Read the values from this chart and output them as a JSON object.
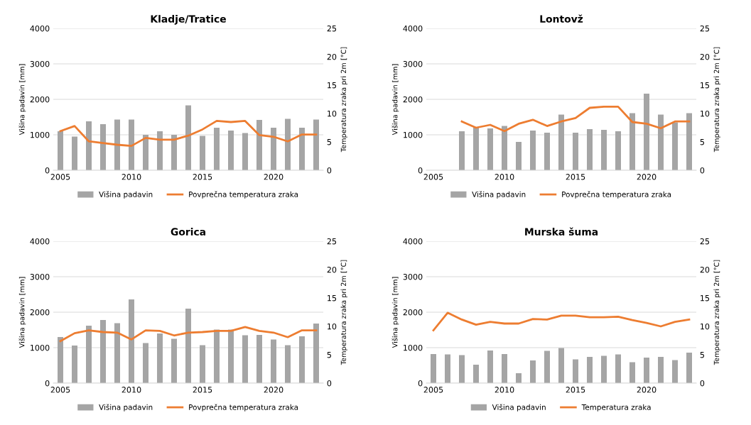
{
  "chart_data": [
    {
      "type": "bar",
      "title": "Kladje/Tratice",
      "ylabel": "Višina padavin [mm]",
      "y2label": "Temperatura zraka pri 2m [°C]",
      "x": [
        2005,
        2006,
        2007,
        2008,
        2009,
        2010,
        2011,
        2012,
        2013,
        2014,
        2015,
        2016,
        2017,
        2018,
        2019,
        2020,
        2021,
        2022,
        2023
      ],
      "series": [
        {
          "name": "Višina padavin",
          "color": "#a5a5a5",
          "values": [
            1100,
            950,
            1380,
            1300,
            1430,
            1430,
            1000,
            1100,
            1000,
            1830,
            970,
            1200,
            1120,
            1050,
            1420,
            1200,
            1450,
            1200,
            1430
          ]
        },
        {
          "name": "Povprečna temperatura zraka",
          "type": "line",
          "axis": "y2",
          "color": "#ed7d31",
          "values": [
            6.9,
            7.8,
            5.1,
            4.8,
            4.5,
            4.3,
            5.7,
            5.4,
            5.4,
            6.1,
            7.2,
            8.7,
            8.5,
            8.7,
            6.2,
            5.9,
            5.1,
            6.3,
            6.3
          ]
        }
      ],
      "xlim": [
        2004.5,
        2023.5
      ],
      "xticks": [
        2005,
        2010,
        2015,
        2020
      ],
      "ylim": [
        0,
        4000
      ],
      "yticks": [
        0,
        1000,
        2000,
        3000,
        4000
      ],
      "y2lim": [
        0,
        25
      ],
      "y2ticks": [
        0,
        5,
        10,
        15,
        20,
        25
      ],
      "grid": "y",
      "legend": "bottom"
    },
    {
      "type": "bar",
      "title": "Lontovž",
      "ylabel": "Višina padavin [mm]",
      "y2label": "Temperatura zraka pri 2m [°C]",
      "series": [
        {
          "name": "Višina padavin",
          "color": "#a5a5a5",
          "x": [
            2007,
            2008,
            2009,
            2010,
            2011,
            2012,
            2013,
            2014,
            2015,
            2016,
            2017,
            2018,
            2019,
            2020,
            2021,
            2022,
            2023
          ],
          "values": [
            1100,
            1200,
            1180,
            1250,
            800,
            1120,
            1060,
            1570,
            1060,
            1160,
            1140,
            1100,
            1610,
            2160,
            1570,
            1350,
            1610
          ]
        },
        {
          "name": "Povprečna temperatura zraka",
          "type": "line",
          "axis": "y2",
          "color": "#ed7d31",
          "x": [
            2007,
            2008,
            2009,
            2010,
            2011,
            2012,
            2013,
            2014,
            2015,
            2016,
            2017,
            2018,
            2019,
            2020,
            2021,
            2022,
            2023
          ],
          "values": [
            8.6,
            7.5,
            8.0,
            6.9,
            8.2,
            8.9,
            7.8,
            8.6,
            9.2,
            11.0,
            11.2,
            11.2,
            8.5,
            8.2,
            7.4,
            8.6,
            8.6
          ]
        }
      ],
      "xlim": [
        2004.5,
        2023.5
      ],
      "xticks": [
        2005,
        2010,
        2015,
        2020
      ],
      "ylim": [
        0,
        4000
      ],
      "yticks": [
        0,
        1000,
        2000,
        3000,
        4000
      ],
      "y2lim": [
        0,
        25
      ],
      "y2ticks": [
        0,
        5,
        10,
        15,
        20,
        25
      ],
      "grid": "y",
      "legend": "bottom"
    },
    {
      "type": "bar",
      "title": "Gorica",
      "ylabel": "Višina padavin [mm]",
      "y2label": "Temperatura zraka pri 2m [°C]",
      "x": [
        2005,
        2006,
        2007,
        2008,
        2009,
        2010,
        2011,
        2012,
        2013,
        2014,
        2015,
        2016,
        2017,
        2018,
        2019,
        2020,
        2021,
        2022,
        2023
      ],
      "series": [
        {
          "name": "Višina padavin",
          "color": "#a5a5a5",
          "values": [
            1300,
            1060,
            1620,
            1780,
            1690,
            2360,
            1130,
            1400,
            1250,
            2100,
            1070,
            1510,
            1510,
            1350,
            1360,
            1230,
            1070,
            1320,
            1680
          ]
        },
        {
          "name": "Povprečna temperatura zraka",
          "type": "line",
          "axis": "y2",
          "color": "#ed7d31",
          "values": [
            7.4,
            8.8,
            9.3,
            9.0,
            8.9,
            7.7,
            9.3,
            9.2,
            8.4,
            8.9,
            9.0,
            9.2,
            9.2,
            9.9,
            9.2,
            8.9,
            8.1,
            9.3,
            9.3
          ]
        }
      ],
      "xlim": [
        2004.5,
        2023.5
      ],
      "xticks": [
        2005,
        2010,
        2015,
        2020
      ],
      "ylim": [
        0,
        4000
      ],
      "yticks": [
        0,
        1000,
        2000,
        3000,
        4000
      ],
      "y2lim": [
        0,
        25
      ],
      "y2ticks": [
        0,
        5,
        10,
        15,
        20,
        25
      ],
      "grid": "y",
      "legend": "bottom"
    },
    {
      "type": "bar",
      "title": "Murska šuma",
      "ylabel": "Višina padavin [mm]",
      "y2label": "Temperatura zraka pri 2m [°C]",
      "x": [
        2005,
        2006,
        2007,
        2008,
        2009,
        2010,
        2011,
        2012,
        2013,
        2014,
        2015,
        2016,
        2017,
        2018,
        2019,
        2020,
        2021,
        2022,
        2023
      ],
      "series": [
        {
          "name": "Višina padavin",
          "color": "#a5a5a5",
          "values": [
            820,
            810,
            790,
            520,
            920,
            820,
            280,
            640,
            910,
            990,
            670,
            740,
            770,
            810,
            590,
            720,
            740,
            650,
            860
          ]
        },
        {
          "name": "Temperatura zraka",
          "type": "line",
          "axis": "y2",
          "color": "#ed7d31",
          "values": [
            9.3,
            12.4,
            11.2,
            10.3,
            10.8,
            10.5,
            10.5,
            11.3,
            11.2,
            11.9,
            11.9,
            11.6,
            11.6,
            11.7,
            11.1,
            10.6,
            10.0,
            10.8,
            11.2
          ]
        }
      ],
      "xlim": [
        2004.5,
        2023.5
      ],
      "xticks": [
        2005,
        2010,
        2015,
        2020
      ],
      "ylim": [
        0,
        4000
      ],
      "yticks": [
        0,
        1000,
        2000,
        3000,
        4000
      ],
      "y2lim": [
        0,
        25
      ],
      "y2ticks": [
        0,
        5,
        10,
        15,
        20,
        25
      ],
      "grid": "y",
      "legend": "bottom"
    }
  ]
}
